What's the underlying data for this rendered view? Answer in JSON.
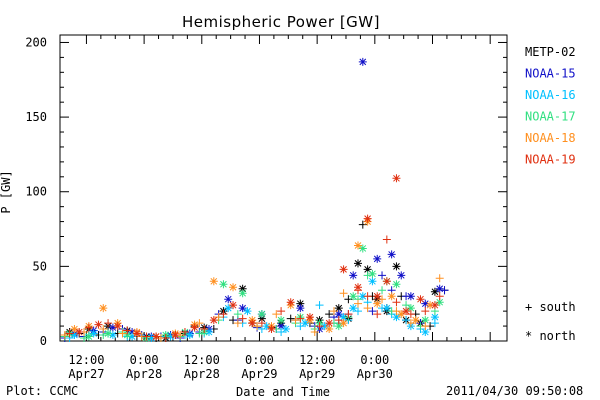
{
  "footer": {
    "plot_credit": "Plot: CCMC",
    "timestamp": "2011/04/30 09:50:08"
  },
  "chart_data": {
    "type": "scatter",
    "title": "Hemispheric Power [GW]",
    "ylabel": "P [GW]",
    "xlabel": "Date and Time",
    "ylim": [
      0,
      205
    ],
    "xlim_hours": [
      0,
      93
    ],
    "yticks": [
      0,
      50,
      100,
      150,
      200
    ],
    "xticks": [
      {
        "hour": 5.5,
        "line1": "12:00",
        "line2": "Apr27"
      },
      {
        "hour": 17.5,
        "line1": "0:00",
        "line2": "Apr28"
      },
      {
        "hour": 29.5,
        "line1": "12:00",
        "line2": "Apr28"
      },
      {
        "hour": 41.5,
        "line1": "0:00",
        "line2": "Apr29"
      },
      {
        "hour": 53.5,
        "line1": "12:00",
        "line2": "Apr29"
      },
      {
        "hour": 65.5,
        "line1": "0:00",
        "line2": "Apr30"
      }
    ],
    "grid": false,
    "legend_position": "right",
    "markers": {
      "south": "+",
      "north": "*"
    },
    "marker_legend": [
      {
        "symbol": "+",
        "label": "south"
      },
      {
        "symbol": "*",
        "label": "north"
      }
    ],
    "series": [
      {
        "name": "METP-02",
        "color": "#000000",
        "south": [
          [
            1,
            3
          ],
          [
            4,
            5
          ],
          [
            8,
            4
          ],
          [
            12,
            5
          ],
          [
            16,
            3
          ],
          [
            20,
            2
          ],
          [
            24,
            4
          ],
          [
            28,
            10
          ],
          [
            32,
            8
          ],
          [
            36,
            14
          ],
          [
            40,
            12
          ],
          [
            44,
            9
          ],
          [
            48,
            15
          ],
          [
            52,
            12
          ],
          [
            56,
            18
          ],
          [
            58,
            12
          ],
          [
            60,
            28
          ],
          [
            63,
            78
          ],
          [
            65,
            30
          ],
          [
            68,
            22
          ],
          [
            71,
            30
          ],
          [
            74,
            18
          ],
          [
            77,
            10
          ],
          [
            80,
            34
          ]
        ],
        "north": [
          [
            2,
            6
          ],
          [
            6,
            8
          ],
          [
            10,
            10
          ],
          [
            14,
            7
          ],
          [
            18,
            3
          ],
          [
            22,
            2
          ],
          [
            26,
            5
          ],
          [
            30,
            9
          ],
          [
            34,
            20
          ],
          [
            38,
            35
          ],
          [
            42,
            15
          ],
          [
            46,
            12
          ],
          [
            50,
            25
          ],
          [
            54,
            14
          ],
          [
            58,
            22
          ],
          [
            60,
            15
          ],
          [
            62,
            52
          ],
          [
            64,
            48
          ],
          [
            66,
            28
          ],
          [
            68,
            20
          ],
          [
            70,
            50
          ],
          [
            72,
            14
          ],
          [
            75,
            12
          ],
          [
            78,
            33
          ]
        ]
      },
      {
        "name": "NOAA-15",
        "color": "#1010c8",
        "south": [
          [
            1,
            2
          ],
          [
            5,
            3
          ],
          [
            9,
            6
          ],
          [
            13,
            8
          ],
          [
            17,
            4
          ],
          [
            21,
            3
          ],
          [
            25,
            2
          ],
          [
            29,
            6
          ],
          [
            33,
            18
          ],
          [
            37,
            14
          ],
          [
            41,
            9
          ],
          [
            45,
            8
          ],
          [
            49,
            14
          ],
          [
            53,
            10
          ],
          [
            57,
            16
          ],
          [
            60,
            18
          ],
          [
            62,
            64
          ],
          [
            65,
            20
          ],
          [
            67,
            44
          ],
          [
            69,
            34
          ],
          [
            72,
            30
          ],
          [
            75,
            12
          ],
          [
            80,
            34
          ]
        ],
        "north": [
          [
            3,
            5
          ],
          [
            7,
            7
          ],
          [
            11,
            9
          ],
          [
            15,
            6
          ],
          [
            19,
            3
          ],
          [
            23,
            4
          ],
          [
            27,
            5
          ],
          [
            31,
            8
          ],
          [
            35,
            28
          ],
          [
            38,
            22
          ],
          [
            42,
            18
          ],
          [
            46,
            10
          ],
          [
            50,
            22
          ],
          [
            54,
            8
          ],
          [
            58,
            18
          ],
          [
            61,
            44
          ],
          [
            63,
            187
          ],
          [
            66,
            55
          ],
          [
            69,
            58
          ],
          [
            71,
            44
          ],
          [
            73,
            30
          ],
          [
            76,
            25
          ],
          [
            79,
            35
          ]
        ]
      },
      {
        "name": "NOAA-16",
        "color": "#00c0ff",
        "south": [
          [
            2,
            2
          ],
          [
            6,
            4
          ],
          [
            10,
            5
          ],
          [
            14,
            3
          ],
          [
            18,
            2
          ],
          [
            22,
            3
          ],
          [
            26,
            4
          ],
          [
            30,
            5
          ],
          [
            34,
            16
          ],
          [
            38,
            12
          ],
          [
            42,
            8
          ],
          [
            46,
            6
          ],
          [
            50,
            10
          ],
          [
            54,
            24
          ],
          [
            58,
            12
          ],
          [
            60,
            14
          ],
          [
            62,
            20
          ],
          [
            64,
            26
          ],
          [
            67,
            22
          ],
          [
            69,
            18
          ],
          [
            72,
            14
          ],
          [
            75,
            8
          ],
          [
            78,
            12
          ]
        ],
        "north": [
          [
            3,
            4
          ],
          [
            7,
            5
          ],
          [
            11,
            4
          ],
          [
            15,
            3
          ],
          [
            19,
            2
          ],
          [
            23,
            3
          ],
          [
            27,
            4
          ],
          [
            31,
            6
          ],
          [
            35,
            22
          ],
          [
            39,
            20
          ],
          [
            43,
            10
          ],
          [
            47,
            8
          ],
          [
            51,
            12
          ],
          [
            55,
            10
          ],
          [
            59,
            16
          ],
          [
            61,
            22
          ],
          [
            63,
            30
          ],
          [
            65,
            40
          ],
          [
            68,
            22
          ],
          [
            70,
            16
          ],
          [
            73,
            10
          ],
          [
            76,
            6
          ],
          [
            78,
            16
          ]
        ]
      },
      {
        "name": "NOAA-17",
        "color": "#30e080",
        "south": [
          [
            1,
            3
          ],
          [
            5,
            2
          ],
          [
            9,
            4
          ],
          [
            13,
            6
          ],
          [
            17,
            3
          ],
          [
            21,
            2
          ],
          [
            25,
            3
          ],
          [
            29,
            5
          ],
          [
            33,
            14
          ],
          [
            37,
            18
          ],
          [
            41,
            10
          ],
          [
            45,
            8
          ],
          [
            49,
            12
          ],
          [
            53,
            8
          ],
          [
            57,
            12
          ],
          [
            60,
            16
          ],
          [
            62,
            28
          ],
          [
            64,
            44
          ],
          [
            67,
            34
          ],
          [
            69,
            20
          ],
          [
            72,
            24
          ],
          [
            75,
            10
          ],
          [
            78,
            20
          ]
        ],
        "north": [
          [
            2,
            5
          ],
          [
            6,
            3
          ],
          [
            10,
            5
          ],
          [
            14,
            4
          ],
          [
            18,
            2
          ],
          [
            22,
            4
          ],
          [
            26,
            6
          ],
          [
            30,
            6
          ],
          [
            34,
            38
          ],
          [
            38,
            32
          ],
          [
            42,
            18
          ],
          [
            46,
            14
          ],
          [
            50,
            16
          ],
          [
            54,
            12
          ],
          [
            58,
            10
          ],
          [
            61,
            30
          ],
          [
            63,
            62
          ],
          [
            65,
            45
          ],
          [
            68,
            40
          ],
          [
            70,
            38
          ],
          [
            73,
            22
          ],
          [
            76,
            14
          ],
          [
            79,
            26
          ]
        ]
      },
      {
        "name": "NOAA-18",
        "color": "#ff9020",
        "south": [
          [
            1,
            4
          ],
          [
            5,
            6
          ],
          [
            9,
            8
          ],
          [
            13,
            5
          ],
          [
            17,
            3
          ],
          [
            21,
            2
          ],
          [
            25,
            4
          ],
          [
            29,
            12
          ],
          [
            33,
            16
          ],
          [
            37,
            12
          ],
          [
            41,
            10
          ],
          [
            45,
            18
          ],
          [
            49,
            14
          ],
          [
            53,
            6
          ],
          [
            57,
            20
          ],
          [
            59,
            32
          ],
          [
            62,
            25
          ],
          [
            64,
            22
          ],
          [
            67,
            28
          ],
          [
            70,
            20
          ],
          [
            73,
            12
          ],
          [
            76,
            10
          ],
          [
            79,
            42
          ]
        ],
        "north": [
          [
            3,
            8
          ],
          [
            6,
            10
          ],
          [
            9,
            22
          ],
          [
            12,
            12
          ],
          [
            16,
            6
          ],
          [
            20,
            3
          ],
          [
            24,
            5
          ],
          [
            28,
            11
          ],
          [
            32,
            40
          ],
          [
            36,
            36
          ],
          [
            40,
            14
          ],
          [
            44,
            10
          ],
          [
            48,
            24
          ],
          [
            52,
            14
          ],
          [
            56,
            8
          ],
          [
            59,
            12
          ],
          [
            62,
            64
          ],
          [
            64,
            80
          ],
          [
            66,
            25
          ],
          [
            69,
            30
          ],
          [
            71,
            18
          ],
          [
            74,
            14
          ],
          [
            77,
            24
          ]
        ]
      },
      {
        "name": "NOAA-19",
        "color": "#e03010",
        "south": [
          [
            2,
            5
          ],
          [
            6,
            9
          ],
          [
            10,
            12
          ],
          [
            14,
            7
          ],
          [
            18,
            3
          ],
          [
            22,
            2
          ],
          [
            26,
            6
          ],
          [
            30,
            8
          ],
          [
            34,
            18
          ],
          [
            38,
            15
          ],
          [
            42,
            12
          ],
          [
            46,
            20
          ],
          [
            50,
            15
          ],
          [
            54,
            10
          ],
          [
            58,
            14
          ],
          [
            60,
            18
          ],
          [
            62,
            34
          ],
          [
            64,
            30
          ],
          [
            66,
            18
          ],
          [
            68,
            68
          ],
          [
            70,
            26
          ],
          [
            73,
            18
          ],
          [
            76,
            20
          ],
          [
            79,
            30
          ]
        ],
        "north": [
          [
            4,
            6
          ],
          [
            8,
            11
          ],
          [
            12,
            10
          ],
          [
            16,
            5
          ],
          [
            20,
            3
          ],
          [
            24,
            4
          ],
          [
            28,
            9
          ],
          [
            32,
            14
          ],
          [
            36,
            24
          ],
          [
            40,
            12
          ],
          [
            44,
            8
          ],
          [
            48,
            26
          ],
          [
            52,
            16
          ],
          [
            56,
            12
          ],
          [
            59,
            48
          ],
          [
            62,
            36
          ],
          [
            64,
            82
          ],
          [
            66,
            30
          ],
          [
            68,
            40
          ],
          [
            70,
            109
          ],
          [
            72,
            20
          ],
          [
            75,
            28
          ],
          [
            78,
            24
          ]
        ]
      }
    ]
  }
}
